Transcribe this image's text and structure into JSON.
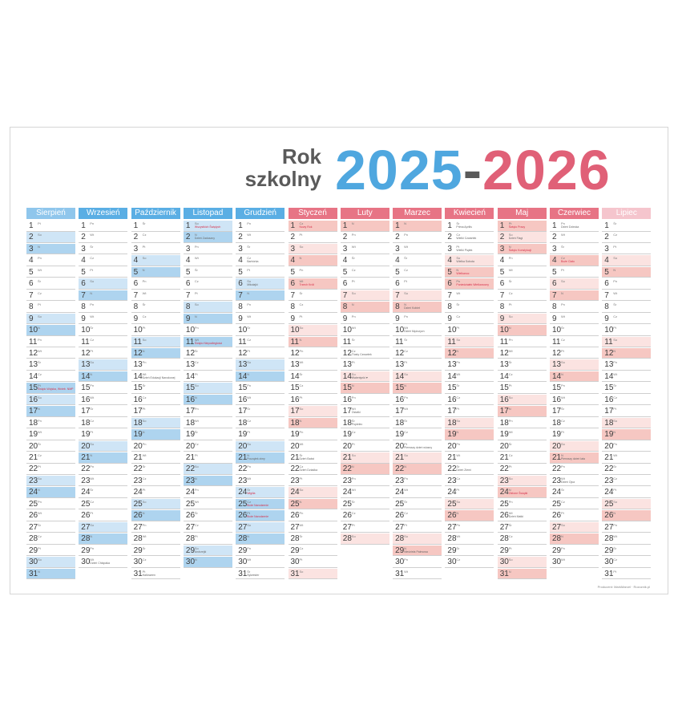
{
  "title": {
    "line1": "Rok",
    "line2": "szkolny",
    "year_start": "2025",
    "dash": "-",
    "year_end": "2026"
  },
  "colors": {
    "blue_head": "#5aaee4",
    "pink_head": "#e77485",
    "light_pink_head": "#f5c5cd"
  },
  "footer": "Producent: MarkMarcel · Rozcznik.pl",
  "months": [
    {
      "name": "Sierpień",
      "head": "blue_light",
      "start_abbr": [
        "Pt",
        "So",
        "N",
        "Pn",
        "Wt",
        "Śr",
        "Cz"
      ],
      "days": 31,
      "shade": {
        "2": "b1",
        "3": "b2",
        "9": "b1",
        "10": "b2",
        "15": "b2",
        "16": "b1",
        "17": "b2",
        "23": "b1",
        "24": "b2",
        "30": "b1",
        "31": "b2"
      },
      "notes": {
        "15": {
          "text": "Święto Wojska, Wnieb. NMP",
          "red": true
        }
      }
    },
    {
      "name": "Wrzesień",
      "head": "blue",
      "start_abbr": [
        "Pn",
        "Wt",
        "Śr",
        "Cz",
        "Pt",
        "So",
        "N"
      ],
      "days": 30,
      "shade": {
        "6": "b1",
        "7": "b2",
        "13": "b1",
        "14": "b2",
        "20": "b1",
        "21": "b2",
        "27": "b1",
        "28": "b2"
      },
      "notes": {
        "30": {
          "text": "Dzień Chłopaka",
          "red": false
        }
      }
    },
    {
      "name": "Październik",
      "head": "blue",
      "start_abbr": [
        "Śr",
        "Cz",
        "Pt",
        "So",
        "N",
        "Pn",
        "Wt"
      ],
      "days": 31,
      "shade": {
        "4": "b1",
        "5": "b2",
        "11": "b1",
        "12": "b2",
        "18": "b1",
        "19": "b2",
        "25": "b1",
        "26": "b2"
      },
      "notes": {
        "14": {
          "text": "Dzień Edukacji Narodowej",
          "red": false
        },
        "31": {
          "text": "Halloween",
          "red": false
        }
      }
    },
    {
      "name": "Listopad",
      "head": "blue",
      "start_abbr": [
        "So",
        "N",
        "Pn",
        "Wt",
        "Śr",
        "Cz",
        "Pt"
      ],
      "days": 30,
      "shade": {
        "1": "b1",
        "2": "b2",
        "8": "b1",
        "9": "b2",
        "11": "b2",
        "15": "b1",
        "16": "b2",
        "22": "b1",
        "23": "b2",
        "29": "b1",
        "30": "b2"
      },
      "notes": {
        "1": {
          "text": "Wszystkich Świętych",
          "red": true
        },
        "2": {
          "text": "Dzień Zaduszny",
          "red": false
        },
        "11": {
          "text": "Święto Niepodległości",
          "red": true
        },
        "29": {
          "text": "Andrzejki",
          "red": false
        }
      }
    },
    {
      "name": "Grudzień",
      "head": "blue",
      "start_abbr": [
        "Pn",
        "Wt",
        "Śr",
        "Cz",
        "Pt",
        "So",
        "N"
      ],
      "days": 31,
      "shade": {
        "6": "b1",
        "7": "b2",
        "13": "b1",
        "14": "b2",
        "20": "b1",
        "21": "b2",
        "24": "b1",
        "25": "b2",
        "26": "b2",
        "27": "b1",
        "28": "b2"
      },
      "notes": {
        "4": {
          "text": "Barbórka",
          "red": false
        },
        "6": {
          "text": "Mikołajki",
          "red": false
        },
        "21": {
          "text": "Początek zimy",
          "red": false
        },
        "24": {
          "text": "Wigilia",
          "red": true
        },
        "25": {
          "text": "Boże Narodzenie",
          "red": true
        },
        "26": {
          "text": "Boże Narodzenie",
          "red": true
        },
        "31": {
          "text": "Sylwester",
          "red": false
        }
      }
    },
    {
      "name": "Styczeń",
      "head": "pink",
      "start_abbr": [
        "Cz",
        "Pt",
        "So",
        "N",
        "Pn",
        "Wt",
        "Śr"
      ],
      "days": 31,
      "shade": {
        "1": "p2",
        "3": "p1",
        "4": "p2",
        "6": "p2",
        "10": "p1",
        "11": "p2",
        "17": "p1",
        "18": "p2",
        "24": "p1",
        "25": "p2",
        "31": "p1"
      },
      "notes": {
        "1": {
          "text": "Nowy Rok",
          "red": true
        },
        "6": {
          "text": "Trzech Króli",
          "red": true
        },
        "21": {
          "text": "Dzień Babci",
          "red": false
        },
        "22": {
          "text": "Dzień Dziadka",
          "red": false
        }
      }
    },
    {
      "name": "Luty",
      "head": "pink",
      "start_abbr": [
        "N",
        "Pn",
        "Wt",
        "Śr",
        "Cz",
        "Pt",
        "So"
      ],
      "days": 28,
      "shade": {
        "1": "p2",
        "7": "p1",
        "8": "p2",
        "14": "p1",
        "15": "p2",
        "21": "p1",
        "22": "p2",
        "28": "p1"
      },
      "notes": {
        "12": {
          "text": "Tłusty Czwartek",
          "red": false
        },
        "14": {
          "text": "Walentynki ♥",
          "red": false
        },
        "17": {
          "text": "Ostatki",
          "red": false
        },
        "18": {
          "text": "Popielec",
          "red": false
        }
      }
    },
    {
      "name": "Marzec",
      "head": "pink",
      "start_abbr": [
        "N",
        "Pn",
        "Wt",
        "Śr",
        "Cz",
        "Pt",
        "So"
      ],
      "days": 31,
      "shade": {
        "1": "p2",
        "7": "p1",
        "8": "p2",
        "14": "p1",
        "15": "p2",
        "21": "p1",
        "22": "p2",
        "28": "p1",
        "29": "p2"
      },
      "notes": {
        "8": {
          "text": "Dzień Kobiet",
          "red": false
        },
        "10": {
          "text": "Dzień Mężczyzn",
          "red": false
        },
        "20": {
          "text": "Pierwszy dzień wiosny",
          "red": false
        },
        "29": {
          "text": "Niedziela Palmowa",
          "red": false
        }
      }
    },
    {
      "name": "Kwiecień",
      "head": "pink",
      "start_abbr": [
        "Śr",
        "Cz",
        "Pt",
        "So",
        "N",
        "Pn",
        "Wt"
      ],
      "days": 30,
      "shade": {
        "4": "p1",
        "5": "p2",
        "6": "p2",
        "11": "p1",
        "12": "p2",
        "18": "p1",
        "19": "p2",
        "25": "p1",
        "26": "p2"
      },
      "notes": {
        "1": {
          "text": "Prima Aprilis",
          "red": false
        },
        "2": {
          "text": "Wielki Czwartek",
          "red": false
        },
        "3": {
          "text": "Wielki Piątek",
          "red": false
        },
        "4": {
          "text": "Wielka Sobota",
          "red": false
        },
        "5": {
          "text": "Wielkanoc",
          "red": true
        },
        "6": {
          "text": "Poniedziałek Wielkanocny",
          "red": true
        },
        "22": {
          "text": "Dzień Ziemi",
          "red": false
        }
      }
    },
    {
      "name": "Maj",
      "head": "pink",
      "start_abbr": [
        "Pt",
        "So",
        "N",
        "Pn",
        "Wt",
        "Śr",
        "Cz"
      ],
      "days": 31,
      "shade": {
        "1": "p2",
        "2": "p1",
        "3": "p2",
        "9": "p1",
        "10": "p2",
        "16": "p1",
        "17": "p2",
        "23": "p1",
        "24": "p2",
        "30": "p1",
        "31": "p2"
      },
      "notes": {
        "1": {
          "text": "Święto Pracy",
          "red": true
        },
        "2": {
          "text": "Dzień Flagi",
          "red": false
        },
        "3": {
          "text": "Święto Konstytucji",
          "red": true
        },
        "24": {
          "text": "Zielone Świątki",
          "red": true
        },
        "26": {
          "text": "Dzień Matki",
          "red": false
        }
      }
    },
    {
      "name": "Czerwiec",
      "head": "pink",
      "start_abbr": [
        "Pn",
        "Wt",
        "Śr",
        "Cz",
        "Pt",
        "So",
        "N"
      ],
      "days": 30,
      "shade": {
        "4": "p2",
        "6": "p1",
        "7": "p2",
        "13": "p1",
        "14": "p2",
        "20": "p1",
        "21": "p2",
        "27": "p1",
        "28": "p2"
      },
      "notes": {
        "1": {
          "text": "Dzień Dziecka",
          "red": false
        },
        "4": {
          "text": "Boże Ciało",
          "red": true
        },
        "21": {
          "text": "Pierwszy dzień lata",
          "red": false
        },
        "23": {
          "text": "Dzień Ojca",
          "red": false
        }
      }
    },
    {
      "name": "Lipiec",
      "head": "pink_light",
      "start_abbr": [
        "Śr",
        "Cz",
        "Pt",
        "So",
        "N",
        "Pn",
        "Wt"
      ],
      "days": 31,
      "shade": {
        "4": "p1",
        "5": "p2",
        "11": "p1",
        "12": "p2",
        "18": "p1",
        "19": "p2",
        "25": "p1",
        "26": "p2"
      },
      "notes": {}
    }
  ]
}
